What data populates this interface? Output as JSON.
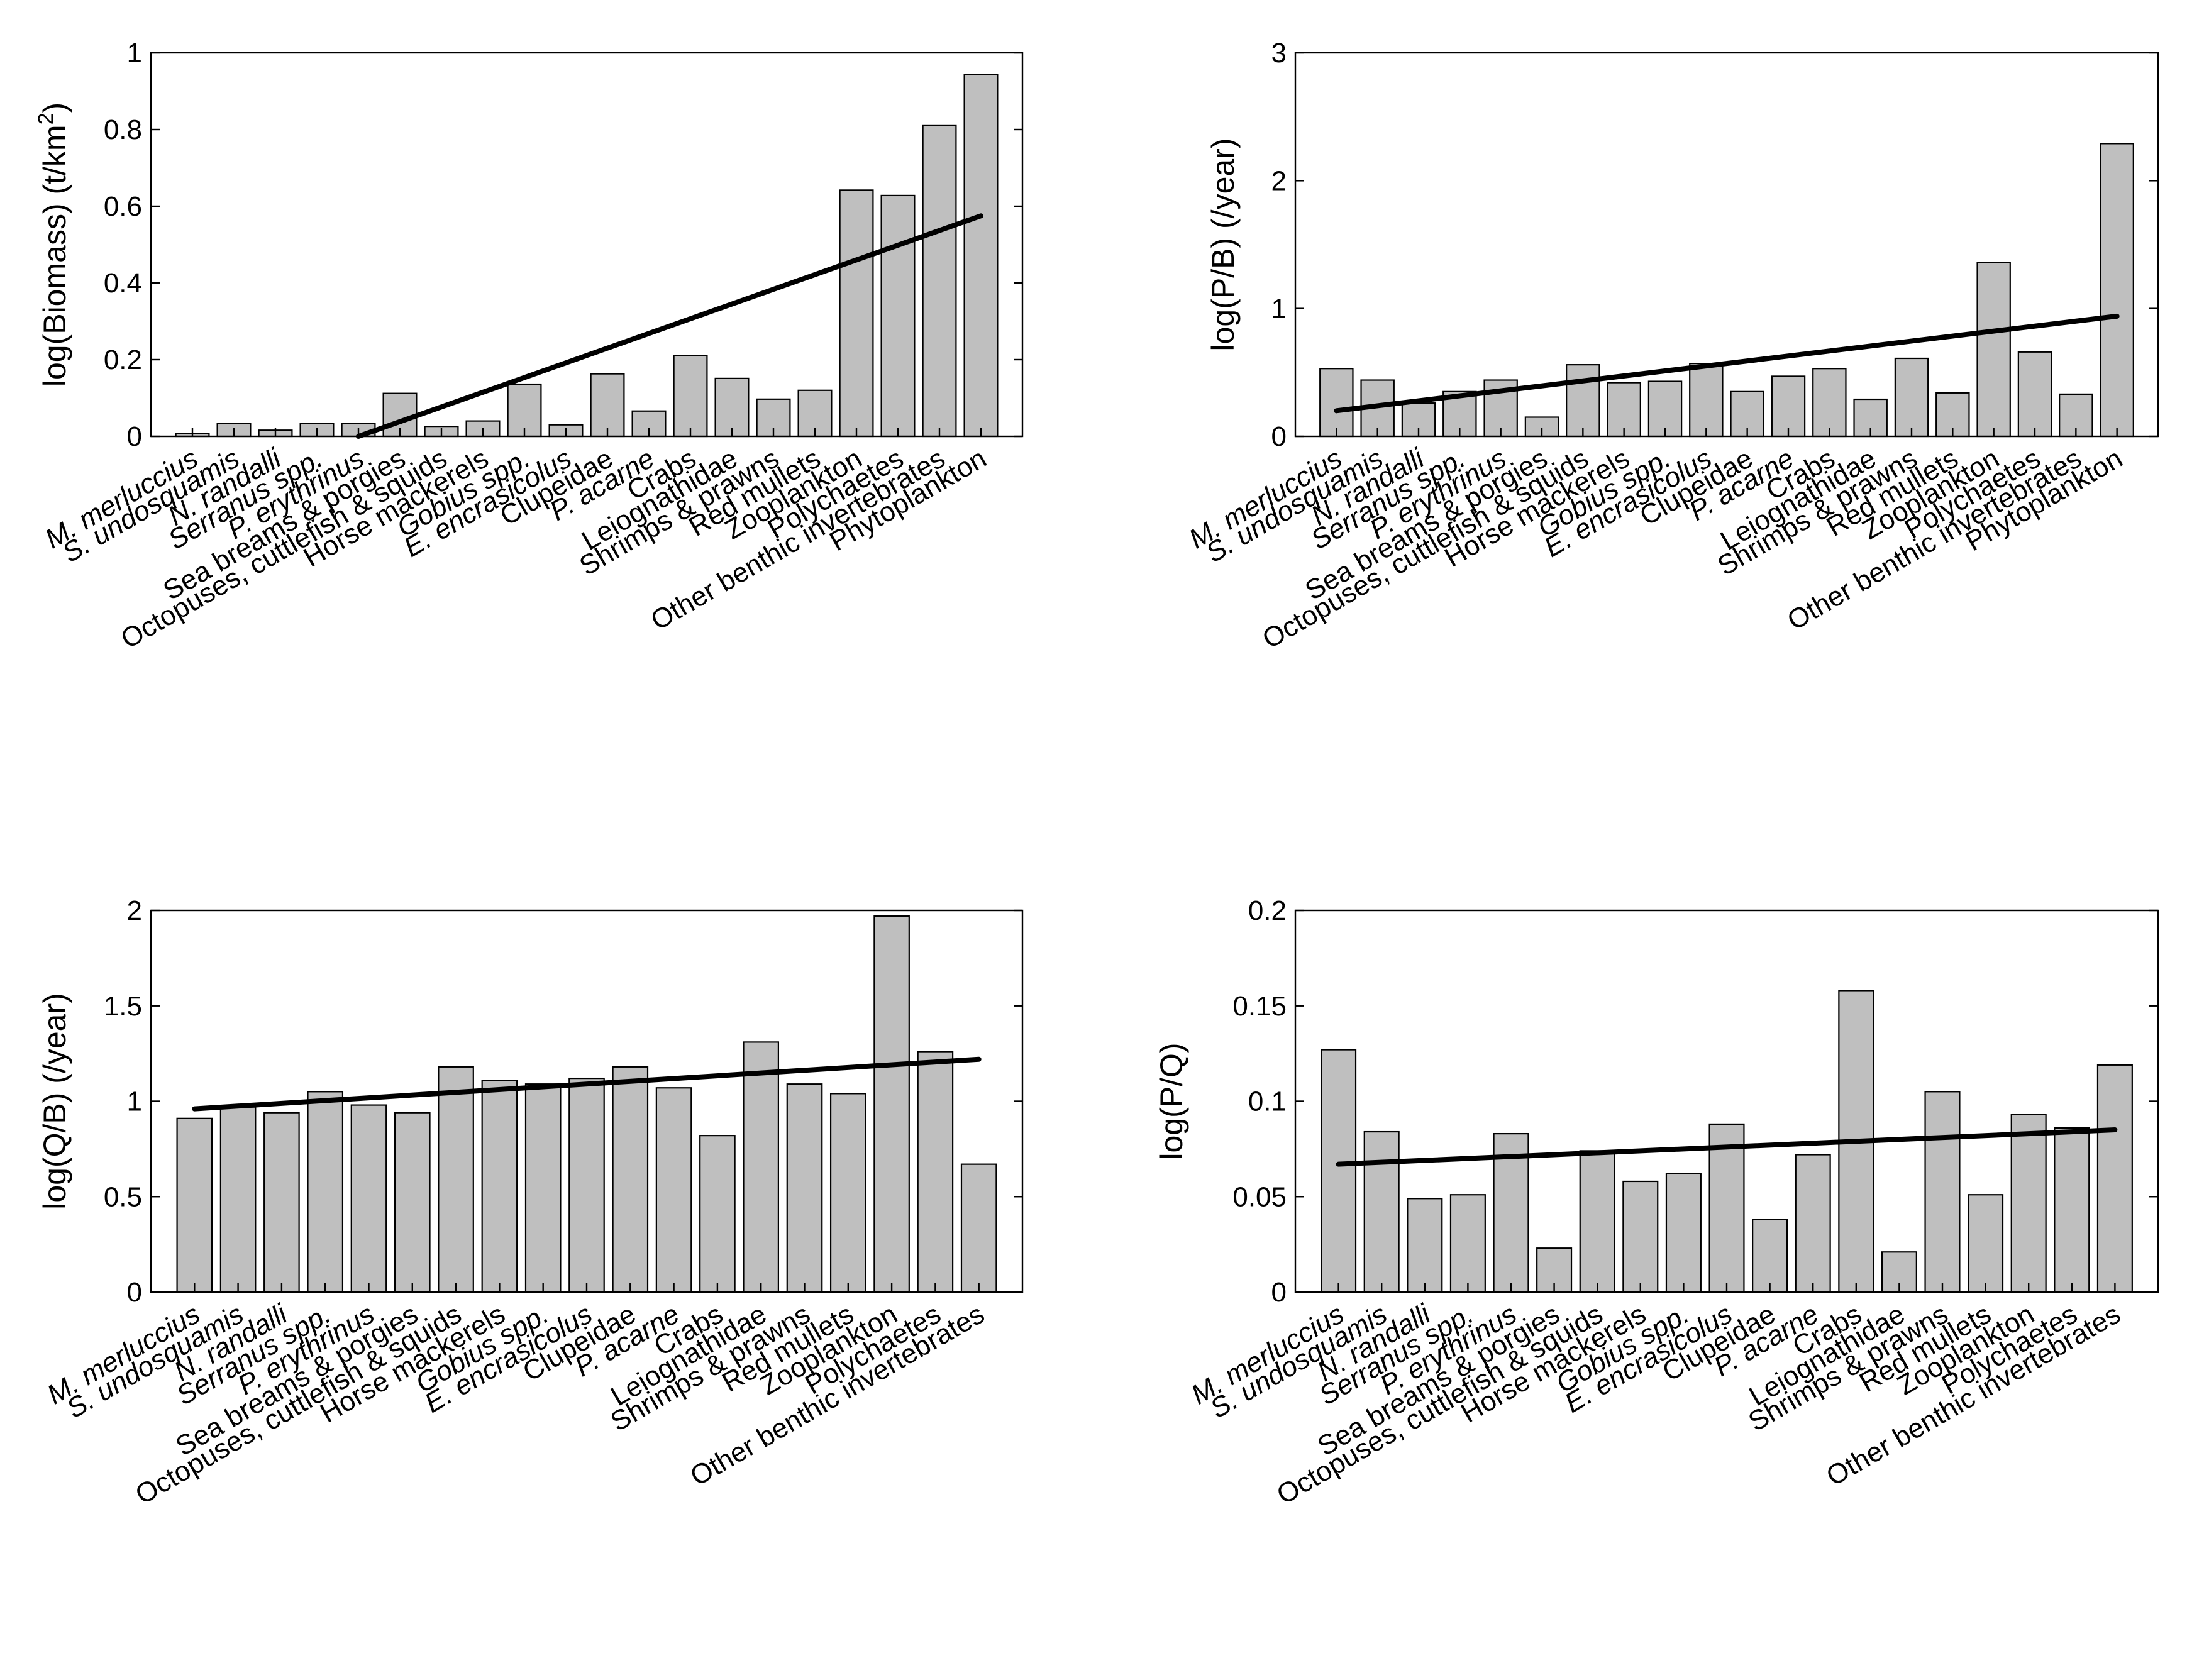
{
  "chart_data": [
    {
      "type": "bar",
      "ylabel": "log(Biomass) (t/km",
      "ylabel_sup": "2",
      "ylabel_tail": ")",
      "ylim": [
        0,
        1
      ],
      "yticks": [
        "0",
        "0.2",
        "0.4",
        "0.6",
        "0.8",
        "1"
      ],
      "ytick_values": [
        0,
        0.2,
        0.4,
        0.6,
        0.8,
        1
      ],
      "categories": [
        "M. merluccius",
        "S. undosquamis",
        "N. randalli",
        "Serranus spp.",
        "P. erythrinus",
        "Sea breams & porgies",
        "Octopuses, cuttlefish & squids",
        "Horse mackerels",
        "Gobius spp.",
        "E. encrasicolus",
        "Clupeidae",
        "P. acarne",
        "Crabs",
        "Leiognathidae",
        "Shrimps & prawns",
        "Red mullets",
        "Zooplankton",
        "Polychaetes",
        "Other benthic invertebrates",
        "Phytoplankton"
      ],
      "italic": [
        true,
        true,
        true,
        true,
        true,
        false,
        false,
        false,
        true,
        true,
        false,
        true,
        false,
        false,
        false,
        false,
        false,
        false,
        false,
        false
      ],
      "values": [
        0.008,
        0.034,
        0.016,
        0.034,
        0.034,
        0.112,
        0.026,
        0.04,
        0.136,
        0.03,
        0.163,
        0.066,
        0.21,
        0.151,
        0.097,
        0.12,
        0.642,
        0.628,
        0.81,
        0.943
      ],
      "trend": {
        "x_start": 5,
        "y_start": 0.0,
        "x_end": 20,
        "y_end": 0.575
      }
    },
    {
      "type": "bar",
      "ylabel": "log(P/B) (/year)",
      "ylim": [
        0,
        3
      ],
      "yticks": [
        "0",
        "1",
        "2",
        "3"
      ],
      "ytick_values": [
        0,
        1,
        2,
        3
      ],
      "categories": [
        "M. merluccius",
        "S. undosquamis",
        "N. randalli",
        "Serranus spp.",
        "P. erythrinus",
        "Sea breams & porgies",
        "Octopuses, cuttlefish & squids",
        "Horse mackerels",
        "Gobius spp.",
        "E. encrasicolus",
        "Clupeidae",
        "P. acarne",
        "Crabs",
        "Leiognathidae",
        "Shrimps & prawns",
        "Red mullets",
        "Zooplankton",
        "Polychaetes",
        "Other benthic invertebrates",
        "Phytoplankton"
      ],
      "italic": [
        true,
        true,
        true,
        true,
        true,
        false,
        false,
        false,
        true,
        true,
        false,
        true,
        false,
        false,
        false,
        false,
        false,
        false,
        false,
        false
      ],
      "values": [
        0.53,
        0.44,
        0.26,
        0.35,
        0.44,
        0.15,
        0.56,
        0.42,
        0.43,
        0.57,
        0.35,
        0.47,
        0.53,
        0.29,
        0.61,
        0.34,
        1.36,
        0.66,
        0.33,
        2.29
      ],
      "trend": {
        "x_start": 1,
        "y_start": 0.2,
        "x_end": 20,
        "y_end": 0.94
      }
    },
    {
      "type": "bar",
      "ylabel": "log(Q/B) (/year)",
      "ylim": [
        0,
        2
      ],
      "yticks": [
        "0",
        "0.5",
        "1",
        "1.5",
        "2"
      ],
      "ytick_values": [
        0,
        0.5,
        1,
        1.5,
        2
      ],
      "categories": [
        "M. merluccius",
        "S. undosquamis",
        "N. randalli",
        "Serranus spp.",
        "P. erythrinus",
        "Sea breams & porgies",
        "Octopuses, cuttlefish & squids",
        "Horse mackerels",
        "Gobius spp.",
        "E. encrasicolus",
        "Clupeidae",
        "P. acarne",
        "Crabs",
        "Leiognathidae",
        "Shrimps & prawns",
        "Red mullets",
        "Zooplankton",
        "Polychaetes",
        "Other benthic invertebrates"
      ],
      "italic": [
        true,
        true,
        true,
        true,
        true,
        false,
        false,
        false,
        true,
        true,
        false,
        true,
        false,
        false,
        false,
        false,
        false,
        false,
        false
      ],
      "values": [
        0.91,
        0.97,
        0.94,
        1.05,
        0.98,
        0.94,
        1.18,
        1.11,
        1.09,
        1.12,
        1.18,
        1.07,
        0.82,
        1.31,
        1.09,
        1.04,
        1.97,
        1.26,
        0.67
      ],
      "trend": {
        "x_start": 1,
        "y_start": 0.96,
        "x_end": 19,
        "y_end": 1.22
      }
    },
    {
      "type": "bar",
      "ylabel": "log(P/Q)",
      "ylim": [
        0,
        0.2
      ],
      "yticks": [
        "0",
        "0.05",
        "0.1",
        "0.15",
        "0.2"
      ],
      "ytick_values": [
        0,
        0.05,
        0.1,
        0.15,
        0.2
      ],
      "categories": [
        "M. merluccius",
        "S. undosquamis",
        "N. randalli",
        "Serranus spp.",
        "P. erythrinus",
        "Sea breams & porgies",
        "Octopuses, cuttlefish & squids",
        "Horse mackerels",
        "Gobius spp.",
        "E. encrasicolus",
        "Clupeidae",
        "P. acarne",
        "Crabs",
        "Leiognathidae",
        "Shrimps & prawns",
        "Red mullets",
        "Zooplankton",
        "Polychaetes",
        "Other benthic invertebrates"
      ],
      "italic": [
        true,
        true,
        true,
        true,
        true,
        false,
        false,
        false,
        true,
        true,
        false,
        true,
        false,
        false,
        false,
        false,
        false,
        false,
        false
      ],
      "values": [
        0.127,
        0.084,
        0.049,
        0.051,
        0.083,
        0.023,
        0.074,
        0.058,
        0.062,
        0.088,
        0.038,
        0.072,
        0.158,
        0.021,
        0.105,
        0.051,
        0.093,
        0.086,
        0.119
      ],
      "trend": {
        "x_start": 1,
        "y_start": 0.067,
        "x_end": 19,
        "y_end": 0.085
      }
    }
  ]
}
